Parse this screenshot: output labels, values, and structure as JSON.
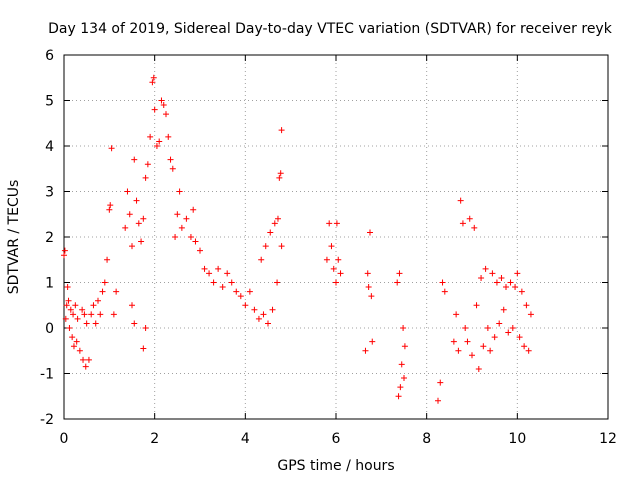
{
  "chart_data": {
    "type": "scatter",
    "title": "Day 134 of 2019, Sidereal Day-to-day VTEC variation (SDTVAR) for receiver reyk",
    "xlabel": "GPS time / hours",
    "ylabel": "SDTVAR / TECUs",
    "xlim": [
      0,
      12
    ],
    "ylim": [
      -2,
      6
    ],
    "x_ticks": [
      0,
      2,
      4,
      6,
      8,
      10,
      12
    ],
    "y_ticks": [
      -2,
      -1,
      0,
      1,
      2,
      3,
      4,
      5,
      6
    ],
    "x_tick_labels": [
      "0",
      "2",
      "4",
      "6",
      "8",
      "10",
      "12"
    ],
    "y_tick_labels": [
      "-2",
      "-1",
      "0",
      "1",
      "2",
      "3",
      "4",
      "5",
      "6"
    ],
    "grid": true,
    "marker": "+",
    "color": "#ff0000",
    "series": [
      {
        "name": "SDTVAR",
        "points": [
          [
            0.0,
            1.6
          ],
          [
            0.02,
            1.7
          ],
          [
            0.04,
            0.2
          ],
          [
            0.06,
            0.5
          ],
          [
            0.08,
            0.9
          ],
          [
            0.1,
            0.6
          ],
          [
            0.12,
            0.0
          ],
          [
            0.15,
            0.4
          ],
          [
            0.18,
            -0.2
          ],
          [
            0.2,
            0.3
          ],
          [
            0.22,
            -0.4
          ],
          [
            0.25,
            0.5
          ],
          [
            0.28,
            -0.3
          ],
          [
            0.3,
            0.2
          ],
          [
            0.35,
            -0.5
          ],
          [
            0.4,
            0.4
          ],
          [
            0.42,
            -0.7
          ],
          [
            0.45,
            0.3
          ],
          [
            0.48,
            -0.85
          ],
          [
            0.5,
            0.1
          ],
          [
            0.55,
            -0.7
          ],
          [
            0.6,
            0.3
          ],
          [
            0.65,
            0.5
          ],
          [
            0.7,
            0.1
          ],
          [
            0.75,
            0.6
          ],
          [
            0.8,
            0.3
          ],
          [
            0.85,
            0.8
          ],
          [
            0.9,
            1.0
          ],
          [
            0.95,
            1.5
          ],
          [
            1.0,
            2.6
          ],
          [
            1.02,
            2.7
          ],
          [
            1.05,
            3.95
          ],
          [
            1.1,
            0.3
          ],
          [
            1.15,
            0.8
          ],
          [
            1.35,
            2.2
          ],
          [
            1.4,
            3.0
          ],
          [
            1.45,
            2.5
          ],
          [
            1.5,
            1.8
          ],
          [
            1.5,
            0.5
          ],
          [
            1.55,
            3.7
          ],
          [
            1.55,
            0.1
          ],
          [
            1.6,
            2.8
          ],
          [
            1.65,
            2.3
          ],
          [
            1.7,
            1.9
          ],
          [
            1.75,
            -0.45
          ],
          [
            1.75,
            2.4
          ],
          [
            1.8,
            0.0
          ],
          [
            1.8,
            3.3
          ],
          [
            1.85,
            3.6
          ],
          [
            1.9,
            4.2
          ],
          [
            1.95,
            5.4
          ],
          [
            1.98,
            5.5
          ],
          [
            2.0,
            4.8
          ],
          [
            2.05,
            4.0
          ],
          [
            2.1,
            4.1
          ],
          [
            2.15,
            5.0
          ],
          [
            2.2,
            4.9
          ],
          [
            2.25,
            4.7
          ],
          [
            2.3,
            4.2
          ],
          [
            2.35,
            3.7
          ],
          [
            2.4,
            3.5
          ],
          [
            2.45,
            2.0
          ],
          [
            2.5,
            2.5
          ],
          [
            2.55,
            3.0
          ],
          [
            2.6,
            2.2
          ],
          [
            2.7,
            2.4
          ],
          [
            2.8,
            2.0
          ],
          [
            2.85,
            2.6
          ],
          [
            2.9,
            1.9
          ],
          [
            3.0,
            1.7
          ],
          [
            3.1,
            1.3
          ],
          [
            3.2,
            1.2
          ],
          [
            3.3,
            1.0
          ],
          [
            3.4,
            1.3
          ],
          [
            3.5,
            0.9
          ],
          [
            3.6,
            1.2
          ],
          [
            3.7,
            1.0
          ],
          [
            3.8,
            0.8
          ],
          [
            3.9,
            0.7
          ],
          [
            4.0,
            0.5
          ],
          [
            4.1,
            0.8
          ],
          [
            4.2,
            0.4
          ],
          [
            4.3,
            0.2
          ],
          [
            4.35,
            1.5
          ],
          [
            4.4,
            0.3
          ],
          [
            4.45,
            1.8
          ],
          [
            4.5,
            0.1
          ],
          [
            4.55,
            2.1
          ],
          [
            4.6,
            0.4
          ],
          [
            4.65,
            2.3
          ],
          [
            4.7,
            1.0
          ],
          [
            4.72,
            2.4
          ],
          [
            4.75,
            3.3
          ],
          [
            4.78,
            3.4
          ],
          [
            4.8,
            4.35
          ],
          [
            4.8,
            1.8
          ],
          [
            5.8,
            1.5
          ],
          [
            5.85,
            2.3
          ],
          [
            5.9,
            1.8
          ],
          [
            5.95,
            1.3
          ],
          [
            6.0,
            1.0
          ],
          [
            6.02,
            2.3
          ],
          [
            6.05,
            1.5
          ],
          [
            6.1,
            1.2
          ],
          [
            6.65,
            -0.5
          ],
          [
            6.7,
            1.2
          ],
          [
            6.72,
            0.9
          ],
          [
            6.75,
            2.1
          ],
          [
            6.78,
            0.7
          ],
          [
            6.8,
            -0.3
          ],
          [
            7.35,
            1.0
          ],
          [
            7.38,
            -1.5
          ],
          [
            7.4,
            1.2
          ],
          [
            7.42,
            -1.3
          ],
          [
            7.45,
            -0.8
          ],
          [
            7.48,
            0.0
          ],
          [
            7.5,
            -1.1
          ],
          [
            7.52,
            -0.4
          ],
          [
            8.25,
            -1.6
          ],
          [
            8.3,
            -1.2
          ],
          [
            8.35,
            1.0
          ],
          [
            8.4,
            0.8
          ],
          [
            8.6,
            -0.3
          ],
          [
            8.65,
            0.3
          ],
          [
            8.7,
            -0.5
          ],
          [
            8.75,
            2.8
          ],
          [
            8.8,
            2.3
          ],
          [
            8.85,
            0.0
          ],
          [
            8.9,
            -0.3
          ],
          [
            8.95,
            2.4
          ],
          [
            9.0,
            -0.6
          ],
          [
            9.05,
            2.2
          ],
          [
            9.1,
            0.5
          ],
          [
            9.15,
            -0.9
          ],
          [
            9.2,
            1.1
          ],
          [
            9.25,
            -0.4
          ],
          [
            9.3,
            1.3
          ],
          [
            9.35,
            0.0
          ],
          [
            9.4,
            -0.5
          ],
          [
            9.45,
            1.2
          ],
          [
            9.5,
            -0.2
          ],
          [
            9.55,
            1.0
          ],
          [
            9.6,
            0.1
          ],
          [
            9.65,
            1.1
          ],
          [
            9.7,
            0.4
          ],
          [
            9.75,
            0.9
          ],
          [
            9.8,
            -0.1
          ],
          [
            9.85,
            1.0
          ],
          [
            9.9,
            0.0
          ],
          [
            9.95,
            0.9
          ],
          [
            10.0,
            1.2
          ],
          [
            10.05,
            -0.2
          ],
          [
            10.1,
            0.8
          ],
          [
            10.15,
            -0.4
          ],
          [
            10.2,
            0.5
          ],
          [
            10.25,
            -0.5
          ],
          [
            10.3,
            0.3
          ]
        ]
      }
    ]
  }
}
